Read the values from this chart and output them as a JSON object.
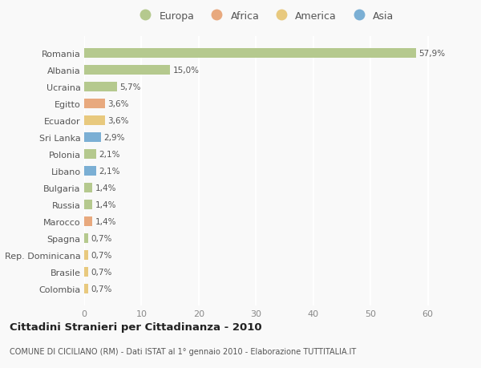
{
  "countries": [
    "Romania",
    "Albania",
    "Ucraina",
    "Egitto",
    "Ecuador",
    "Sri Lanka",
    "Polonia",
    "Libano",
    "Bulgaria",
    "Russia",
    "Marocco",
    "Spagna",
    "Rep. Dominicana",
    "Brasile",
    "Colombia"
  ],
  "values": [
    57.9,
    15.0,
    5.7,
    3.6,
    3.6,
    2.9,
    2.1,
    2.1,
    1.4,
    1.4,
    1.4,
    0.7,
    0.7,
    0.7,
    0.7
  ],
  "labels": [
    "57,9%",
    "15,0%",
    "5,7%",
    "3,6%",
    "3,6%",
    "2,9%",
    "2,1%",
    "2,1%",
    "1,4%",
    "1,4%",
    "1,4%",
    "0,7%",
    "0,7%",
    "0,7%",
    "0,7%"
  ],
  "colors": [
    "#b5c98e",
    "#b5c98e",
    "#b5c98e",
    "#e8a97e",
    "#e8c97e",
    "#7bafd4",
    "#b5c98e",
    "#7bafd4",
    "#b5c98e",
    "#b5c98e",
    "#e8a97e",
    "#b5c98e",
    "#e8c97e",
    "#e8c97e",
    "#e8c97e"
  ],
  "legend_labels": [
    "Europa",
    "Africa",
    "America",
    "Asia"
  ],
  "legend_colors": [
    "#b5c98e",
    "#e8a97e",
    "#e8c97e",
    "#7bafd4"
  ],
  "title": "Cittadini Stranieri per Cittadinanza - 2010",
  "subtitle": "COMUNE DI CICILIANO (RM) - Dati ISTAT al 1° gennaio 2010 - Elaborazione TUTTITALIA.IT",
  "xlim": [
    0,
    63
  ],
  "xticks": [
    0,
    10,
    20,
    30,
    40,
    50,
    60
  ],
  "background_color": "#f9f9f9",
  "grid_color": "#ffffff",
  "bar_height": 0.55
}
